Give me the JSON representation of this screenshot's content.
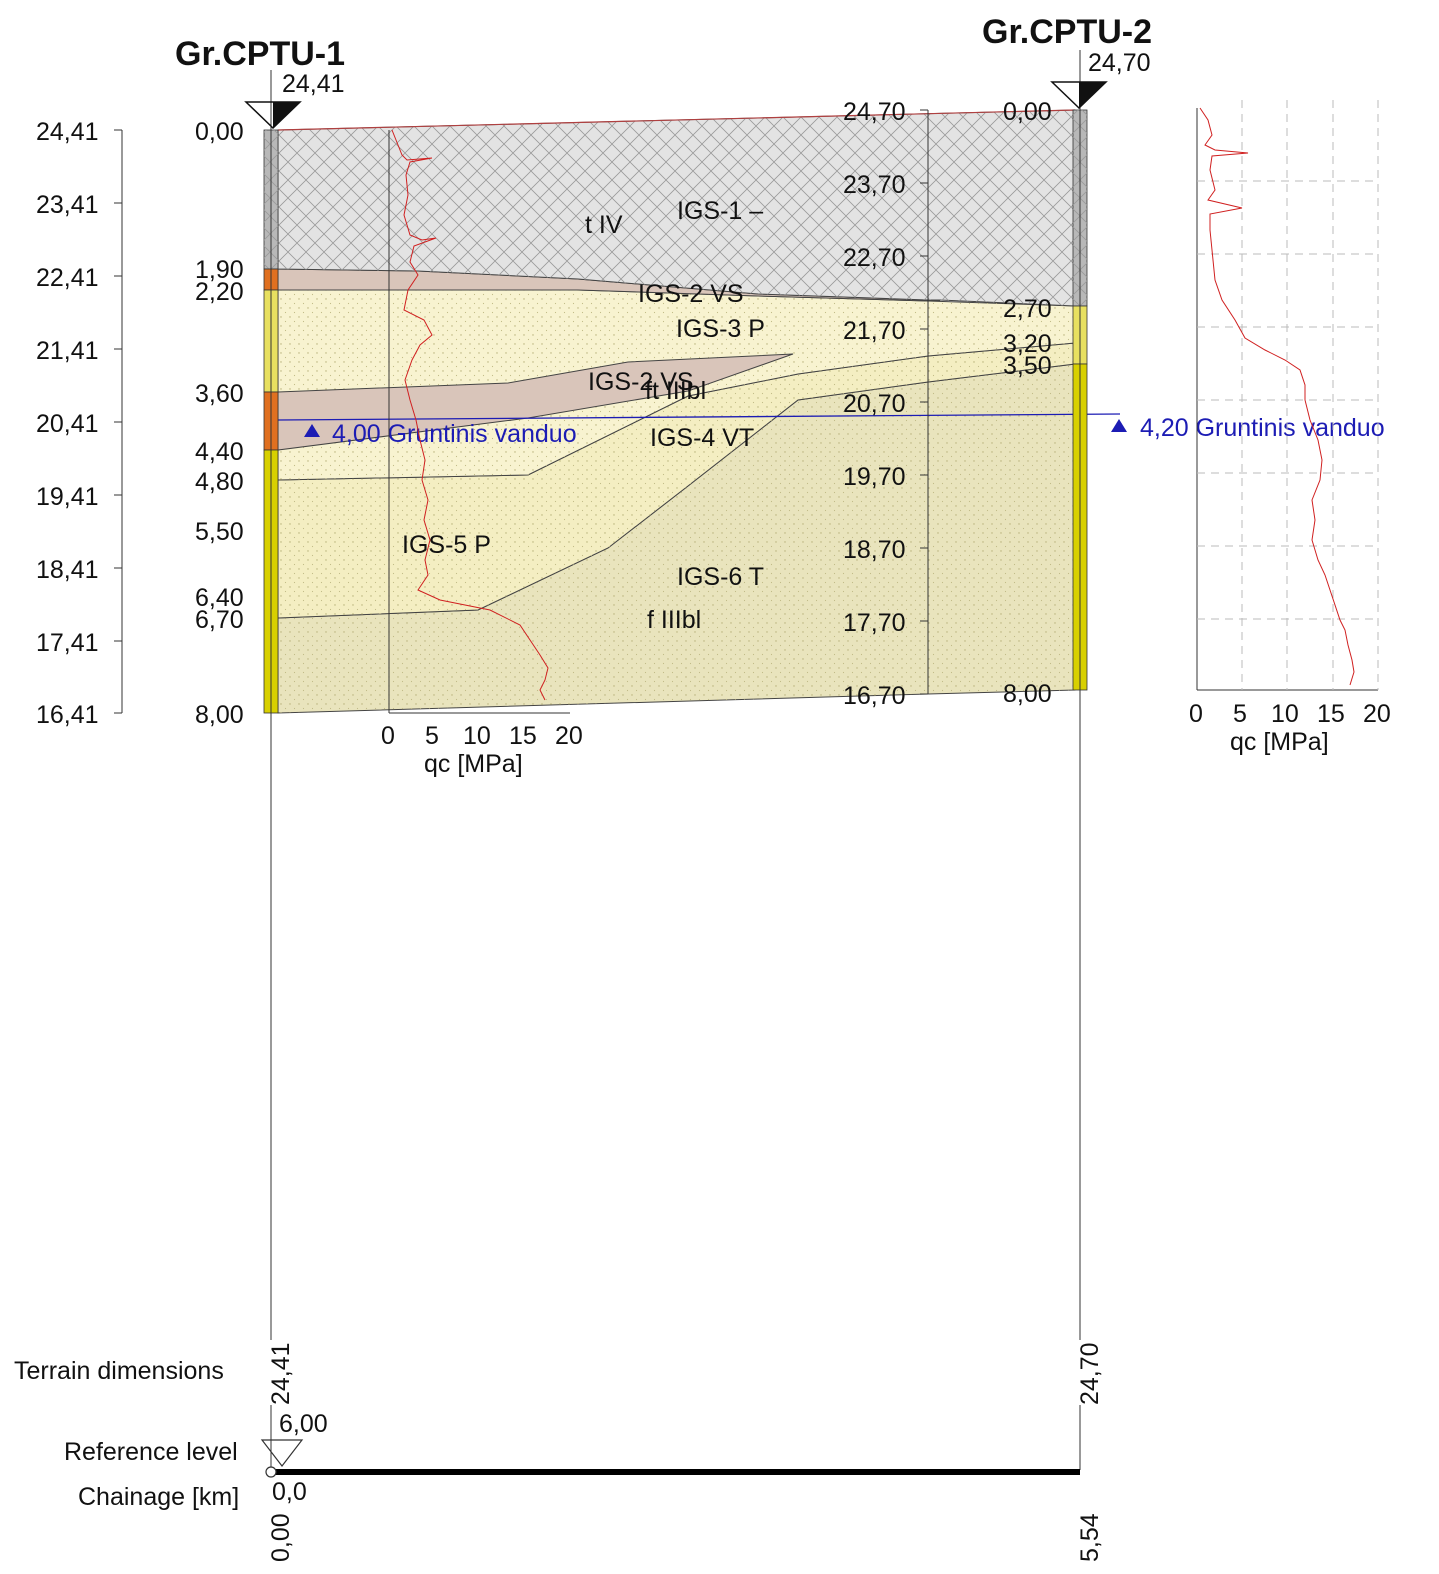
{
  "boreholes": [
    {
      "name": "Gr.CPTU-1",
      "elevation": "24,41"
    },
    {
      "name": "Gr.CPTU-2",
      "elevation": "24,70"
    }
  ],
  "left_axis": {
    "elevation_ticks": [
      "24,41",
      "23,41",
      "22,41",
      "21,41",
      "20,41",
      "19,41",
      "18,41",
      "17,41",
      "16,41"
    ]
  },
  "borehole1": {
    "depth_labels": [
      "0,00",
      "1,90",
      "2,20",
      "3,60",
      "4,40",
      "4,80",
      "5,50",
      "6,40",
      "6,70",
      "8,00"
    ]
  },
  "borehole2": {
    "elevation_ticks": [
      "24,70",
      "23,70",
      "22,70",
      "21,70",
      "20,70",
      "19,70",
      "18,70",
      "17,70",
      "16,70"
    ],
    "depth_labels": [
      "0,00",
      "2,70",
      "3,20",
      "3,50",
      "8,00"
    ]
  },
  "layers": {
    "igs1": "IGS-1 –",
    "t4": "t IV",
    "igs2a": "IGS-2 VS",
    "igs3": "IGS-3 P",
    "igs2b": "IGS-2 VS",
    "ft": "ft IIIbl",
    "igs4": "IGS-4 VT",
    "igs5": "IGS-5 P",
    "igs6": "IGS-6 T",
    "f3": "f IIIbl"
  },
  "water_table": {
    "bh1": "4,00 Gruntinis vanduo",
    "bh2": "4,20 Gruntinis vanduo",
    "color": "#1c1cb4"
  },
  "cpt_chart_1": {
    "x_ticks": [
      "0",
      "5",
      "10",
      "15",
      "20"
    ],
    "xlabel": "qc [MPa]"
  },
  "cpt_chart_2": {
    "x_ticks": [
      "0",
      "5",
      "10",
      "15",
      "20"
    ],
    "xlabel": "qc [MPa]"
  },
  "footer": {
    "terrain_label": "Terrain dimensions",
    "terrain_bh1": "24,41",
    "terrain_bh2": "24,70",
    "reference_label": "Reference level",
    "reference_value": "6,00",
    "chainage_label": "Chainage [km]",
    "chainage_value": "0,0",
    "distance_bh1": "0,00",
    "distance_bh2": "5,54"
  },
  "colors": {
    "fill_layer": "#d9d9d9",
    "clay_layer": "#d8c3b8",
    "sand_layer": "#f7f1c8",
    "silt_layer": "#e8e3bc",
    "cpt_curve": "#d02020",
    "col_yellow": "#d8d000",
    "col_orange": "#e07020"
  }
}
